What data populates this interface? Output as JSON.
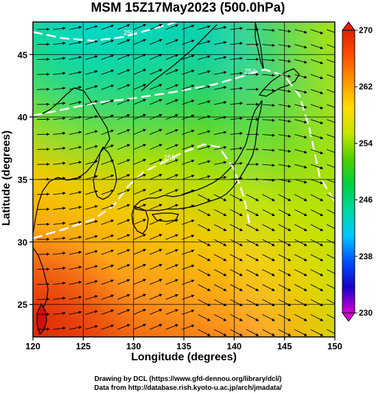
{
  "title": "MSM 15Z17May2023 (500.0hPa)",
  "xlabel": "Longitude (degrees)",
  "ylabel": "Latitude (degrees)",
  "credits": {
    "line1": "Drawing by DCL (https://www.gfd-dennou.org/library/dcl/)",
    "line2": "Data from http://database.rish.kyoto-u.ac.jp/arch/jmadata/"
  },
  "chart_data": {
    "type": "heatmap",
    "variable": "temperature with wind streamlines",
    "xlim": [
      120,
      150
    ],
    "ylim": [
      22.4,
      47.6
    ],
    "x_ticks": [
      "120",
      "125",
      "130",
      "135",
      "140",
      "145",
      "150"
    ],
    "y_ticks": [
      "25",
      "30",
      "35",
      "40",
      "45"
    ],
    "colorbar": {
      "range": [
        230,
        270
      ],
      "tick_labels": [
        "230",
        "238",
        "246",
        "254",
        "262",
        "270"
      ],
      "colors": [
        "#d400d4",
        "#1a00c8",
        "#0050ff",
        "#00c8ff",
        "#00d8a0",
        "#00d040",
        "#50d000",
        "#c8e600",
        "#ffdc00",
        "#ff9600",
        "#ff5000",
        "#e02000"
      ]
    },
    "contours": [
      {
        "label": "250",
        "points": [
          [
            120,
            46.8
          ],
          [
            123,
            46.3
          ],
          [
            126,
            46.1
          ],
          [
            129,
            46.4
          ],
          [
            133,
            47.3
          ],
          [
            135,
            47.8
          ]
        ]
      },
      {
        "label": "254",
        "points": [
          [
            120,
            40.1
          ],
          [
            123,
            40.6
          ],
          [
            126,
            41.1
          ],
          [
            130,
            41.5
          ],
          [
            134,
            42.0
          ],
          [
            138,
            42.6
          ],
          [
            141,
            43.3
          ],
          [
            143,
            43.8
          ],
          [
            145,
            43.3
          ],
          [
            146.5,
            41.7
          ],
          [
            147.5,
            39.0
          ],
          [
            148.5,
            35.2
          ],
          [
            150,
            33.2
          ]
        ]
      },
      {
        "label": "258",
        "points": [
          [
            120,
            30.3
          ],
          [
            123,
            31.0
          ],
          [
            126,
            31.8
          ],
          [
            128,
            32.9
          ],
          [
            129.5,
            34.5
          ],
          [
            131,
            35.6
          ],
          [
            133,
            36.4
          ],
          [
            135,
            37.2
          ],
          [
            137,
            37.8
          ],
          [
            138.5,
            37.6
          ],
          [
            140,
            35.8
          ],
          [
            141,
            33.5
          ],
          [
            141.5,
            31.5
          ]
        ]
      }
    ]
  }
}
